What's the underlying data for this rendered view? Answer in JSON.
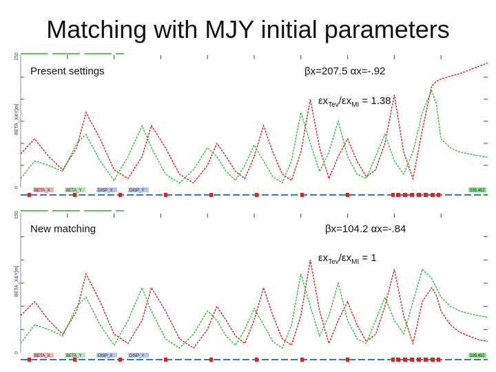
{
  "title": "Matching with MJY initial parameters",
  "chart_data": [
    {
      "type": "line",
      "label": "Present settings",
      "annotations": {
        "beta": "βx=207.5",
        "alpha": "αx=-.92",
        "eps_prefix": "εx",
        "eps_sub1": "Tev",
        "eps_mid": "/εx",
        "eps_sub2": "MI",
        "eps_suffix": " = 1.38"
      },
      "ylabel": "BETA_X&Y[m]",
      "ymax_label": "150",
      "ymin_label": "0",
      "legend": [
        "BETA_X",
        "BETA_Y",
        "DISP_X",
        "DISP_Y"
      ],
      "right_label": "235.452",
      "ylim": [
        0,
        150
      ],
      "xlim": [
        0,
        100
      ],
      "series": [
        {
          "name": "BETA_X",
          "color": "#cc2222",
          "x": [
            0,
            3,
            6,
            9,
            12,
            14,
            17,
            20,
            23,
            26,
            28,
            31,
            34,
            37,
            40,
            42,
            44,
            46,
            48,
            50,
            52,
            54,
            56,
            58,
            60,
            62,
            64,
            66,
            68,
            70,
            72,
            74,
            76,
            78,
            80,
            82,
            84,
            86,
            88,
            89,
            90,
            92,
            94,
            96,
            98,
            100
          ],
          "y": [
            38,
            55,
            35,
            20,
            45,
            85,
            55,
            20,
            10,
            35,
            70,
            45,
            15,
            5,
            25,
            50,
            35,
            18,
            10,
            35,
            70,
            40,
            15,
            8,
            40,
            100,
            45,
            10,
            35,
            55,
            30,
            12,
            20,
            50,
            105,
            40,
            10,
            65,
            115,
            120,
            123,
            126,
            129,
            133,
            137,
            141
          ]
        },
        {
          "name": "BETA_Y",
          "color": "#33bb33",
          "x": [
            0,
            3,
            6,
            9,
            12,
            14,
            17,
            20,
            23,
            26,
            28,
            31,
            34,
            37,
            40,
            42,
            44,
            46,
            48,
            50,
            52,
            54,
            56,
            58,
            60,
            62,
            64,
            66,
            68,
            70,
            72,
            74,
            76,
            78,
            80,
            82,
            84,
            86,
            88,
            89,
            90,
            92,
            94,
            96,
            98,
            100
          ],
          "y": [
            10,
            30,
            25,
            18,
            50,
            60,
            30,
            8,
            35,
            70,
            45,
            15,
            5,
            20,
            45,
            35,
            18,
            8,
            25,
            48,
            30,
            12,
            5,
            30,
            85,
            50,
            18,
            40,
            75,
            35,
            15,
            10,
            35,
            60,
            30,
            15,
            40,
            85,
            110,
            95,
            55,
            45,
            40,
            38,
            36,
            34
          ]
        }
      ]
    },
    {
      "type": "line",
      "label": "New matching",
      "annotations": {
        "beta": "βx=104.2",
        "alpha": "αx=-.84",
        "eps_prefix": "εx",
        "eps_sub1": "Tev",
        "eps_mid": "/εx",
        "eps_sub2": "MI",
        "eps_suffix": " = 1"
      },
      "ylabel": "BETA_X&Y[m]",
      "ymax_label": "150",
      "ymin_label": "0",
      "legend": [
        "BETA_X",
        "BETA_Y",
        "DISP_X",
        "DISP_Y"
      ],
      "right_label": "235.452",
      "ylim": [
        0,
        150
      ],
      "xlim": [
        0,
        100
      ],
      "series": [
        {
          "name": "BETA_X",
          "color": "#cc2222",
          "x": [
            0,
            3,
            6,
            9,
            12,
            14,
            17,
            20,
            23,
            26,
            28,
            31,
            34,
            37,
            40,
            42,
            44,
            46,
            48,
            50,
            52,
            54,
            56,
            58,
            60,
            62,
            64,
            66,
            68,
            70,
            72,
            74,
            76,
            78,
            80,
            82,
            84,
            86,
            88,
            89,
            90,
            92,
            94,
            96,
            98,
            100
          ],
          "y": [
            40,
            55,
            35,
            20,
            45,
            85,
            55,
            20,
            10,
            35,
            70,
            45,
            15,
            5,
            25,
            50,
            35,
            18,
            10,
            35,
            70,
            40,
            15,
            8,
            40,
            100,
            45,
            10,
            35,
            55,
            30,
            12,
            20,
            50,
            90,
            40,
            10,
            55,
            70,
            62,
            45,
            30,
            22,
            18,
            14,
            12
          ]
        },
        {
          "name": "BETA_Y",
          "color": "#33bb33",
          "x": [
            0,
            3,
            6,
            9,
            12,
            14,
            17,
            20,
            23,
            26,
            28,
            31,
            34,
            37,
            40,
            42,
            44,
            46,
            48,
            50,
            52,
            54,
            56,
            58,
            60,
            62,
            64,
            66,
            68,
            70,
            72,
            74,
            76,
            78,
            80,
            82,
            84,
            86,
            88,
            89,
            90,
            92,
            94,
            96,
            98,
            100
          ],
          "y": [
            10,
            30,
            25,
            18,
            50,
            60,
            30,
            8,
            35,
            70,
            45,
            15,
            5,
            20,
            45,
            35,
            18,
            8,
            25,
            48,
            30,
            12,
            5,
            30,
            85,
            50,
            18,
            40,
            75,
            35,
            15,
            10,
            35,
            60,
            35,
            20,
            55,
            90,
            80,
            70,
            60,
            50,
            45,
            42,
            40,
            38
          ]
        }
      ]
    }
  ]
}
